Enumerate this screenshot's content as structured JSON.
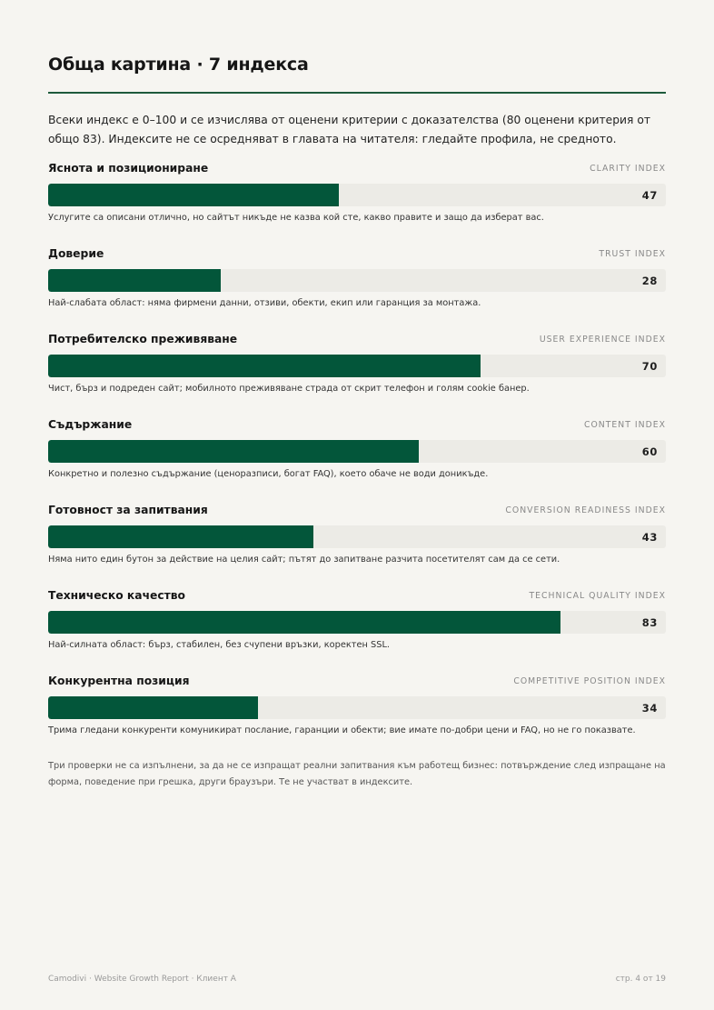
{
  "page_title": "Обща картина · 7 индекса",
  "intro": "Всеки индекс е 0–100 и се изчислява от оценени критерии с доказателства (80 оценени критерия от общо 83). Индексите не се осредняват в главата на читателя: гледайте профила, не средното.",
  "indexes": [
    {
      "title": "Яснота и позициониране",
      "code": "CLARITY INDEX",
      "value": 47,
      "value_label": "47",
      "description": "Услугите са описани отлично, но сайтът никъде не казва кой сте, какво правите и защо да изберат вас."
    },
    {
      "title": "Доверие",
      "code": "TRUST INDEX",
      "value": 28,
      "value_label": "28",
      "description": "Най-слабата област: няма фирмени данни, отзиви, обекти, екип или гаранция за монтажа."
    },
    {
      "title": "Потребителско преживяване",
      "code": "USER EXPERIENCE INDEX",
      "value": 70,
      "value_label": "70",
      "description": "Чист, бърз и подреден сайт; мобилното преживяване страда от скрит телефон и голям cookie банер."
    },
    {
      "title": "Съдържание",
      "code": "CONTENT INDEX",
      "value": 60,
      "value_label": "60",
      "description": "Конкретно и полезно съдържание (ценоразписи, богат FAQ), което обаче не води доникъде."
    },
    {
      "title": "Готовност за запитвания",
      "code": "CONVERSION READINESS INDEX",
      "value": 43,
      "value_label": "43",
      "description": "Няма нито един бутон за действие на целия сайт; пътят до запитване разчита посетителят сам да се сети."
    },
    {
      "title": "Техническо качество",
      "code": "TECHNICAL QUALITY INDEX",
      "value": 83,
      "value_label": "83",
      "description": "Най-силната област: бърз, стабилен, без счупени връзки, коректен SSL."
    },
    {
      "title": "Конкурентна позиция",
      "code": "COMPETITIVE POSITION INDEX",
      "value": 34,
      "value_label": "34",
      "description": "Трима гледани конкуренти комуникират послание, гаранции и обекти; вие имате по-добри цени и FAQ, но не го показвате."
    }
  ],
  "note": "Три проверки не са изпълнени, за да не се изпращат реални запитвания към работещ бизнес: потвърждение след изпращане на форма, поведение при грешка, други браузъри. Те не участват в индексите.",
  "footer": {
    "left": "Camodivi · Website Growth Report · Клиент A",
    "right": "стр. 4 от 19"
  },
  "colors": {
    "accent": "#03563a",
    "track": "#ecebe6",
    "background": "#f6f5f1"
  }
}
